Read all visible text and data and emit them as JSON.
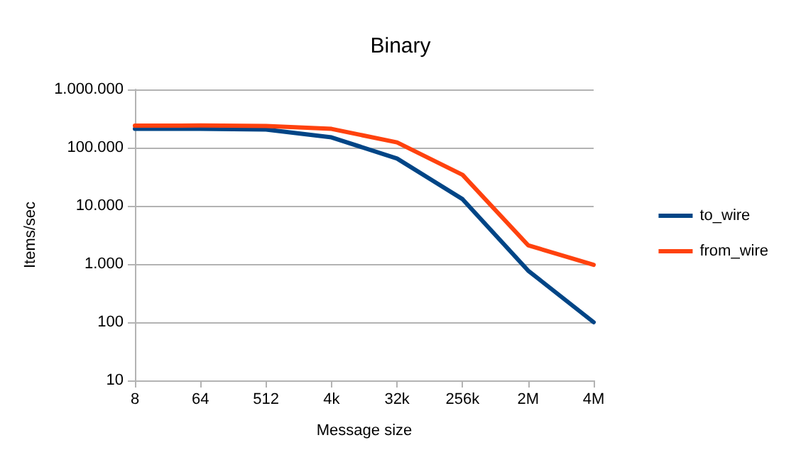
{
  "chart_data": {
    "type": "line",
    "title": "Binary",
    "xlabel": "Message size",
    "ylabel": "Items/sec",
    "categories": [
      "8",
      "64",
      "512",
      "4k",
      "32k",
      "256k",
      "2M",
      "4M"
    ],
    "series": [
      {
        "name": "to_wire",
        "color": "#004586",
        "values": [
          210000,
          210000,
          205000,
          150000,
          65000,
          13000,
          770,
          100
        ]
      },
      {
        "name": "from_wire",
        "color": "#ff420e",
        "values": [
          238000,
          240000,
          235000,
          210000,
          123000,
          34000,
          2100,
          970
        ]
      }
    ],
    "log": "y",
    "ylim": [
      10,
      1000000
    ],
    "yticks": [
      10,
      100,
      {
        "value": 1000,
        "label": "1.000"
      },
      {
        "value": 10000,
        "label": "10.000"
      },
      {
        "value": 100000,
        "label": "100.000"
      },
      {
        "value": 1000000,
        "label": "1.000.000"
      }
    ],
    "grid": "y",
    "legend": "right",
    "marker": "none",
    "line_style": "solid"
  }
}
